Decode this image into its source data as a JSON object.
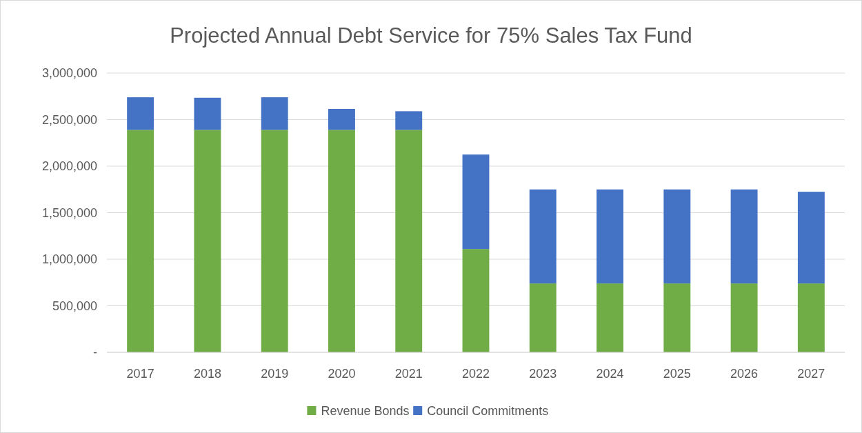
{
  "chart_data": {
    "type": "bar",
    "title": "Projected Annual Debt Service for 75% Sales Tax Fund",
    "categories": [
      "2017",
      "2018",
      "2019",
      "2020",
      "2021",
      "2022",
      "2023",
      "2024",
      "2025",
      "2026",
      "2027"
    ],
    "series": [
      {
        "name": "Revenue Bonds",
        "color": "#70ad47",
        "values": [
          2390000,
          2390000,
          2390000,
          2390000,
          2390000,
          1110000,
          740000,
          740000,
          740000,
          740000,
          740000
        ]
      },
      {
        "name": "Council Commitments",
        "color": "#4472c4",
        "values": [
          350000,
          345000,
          350000,
          225000,
          200000,
          1015000,
          1010000,
          1010000,
          1010000,
          1010000,
          985000
        ]
      }
    ],
    "stacked": true,
    "ylim": [
      0,
      3000000
    ],
    "yticks": [
      {
        "value": 0,
        "label": "-"
      },
      {
        "value": 500000,
        "label": "500,000"
      },
      {
        "value": 1000000,
        "label": "1,000,000"
      },
      {
        "value": 1500000,
        "label": "1,500,000"
      },
      {
        "value": 2000000,
        "label": "2,000,000"
      },
      {
        "value": 2500000,
        "label": "2,500,000"
      },
      {
        "value": 3000000,
        "label": "3,000,000"
      }
    ],
    "grid": "y",
    "legend": "bottom"
  }
}
